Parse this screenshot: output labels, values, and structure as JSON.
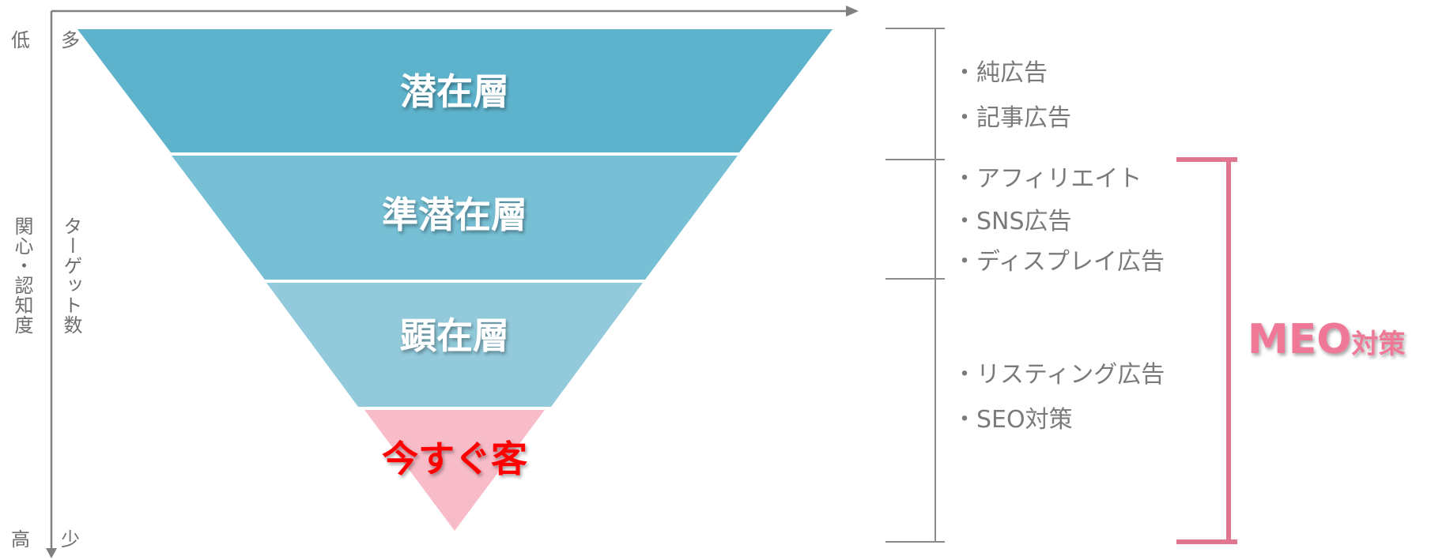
{
  "axis": {
    "outer_top": "低",
    "outer_middle": "関心・認知度",
    "outer_bottom": "高",
    "inner_top": "多",
    "inner_middle": "ターゲット数",
    "inner_bottom": "少"
  },
  "funnel": [
    {
      "label": "潜在層",
      "color": "#5db3cc",
      "text_color": "#ffffff"
    },
    {
      "label": "準潜在層",
      "color": "#76bfd5",
      "text_color": "#ffffff"
    },
    {
      "label": "顕在層",
      "color": "#92cadb",
      "text_color": "#ffffff"
    },
    {
      "label": "今すぐ客",
      "color": "#f7bcc8",
      "text_color": "#ff0000"
    }
  ],
  "channel_groups": [
    {
      "items": [
        "・純広告",
        "・記事広告"
      ]
    },
    {
      "items": [
        "・アフィリエイト",
        "・SNS広告",
        "・ディスプレイ広告"
      ]
    },
    {
      "items": [
        "・リスティング広告",
        "・SEO対策"
      ]
    }
  ],
  "meo": {
    "main": "MEO",
    "suffix": "対策",
    "color": "#ee7895"
  }
}
